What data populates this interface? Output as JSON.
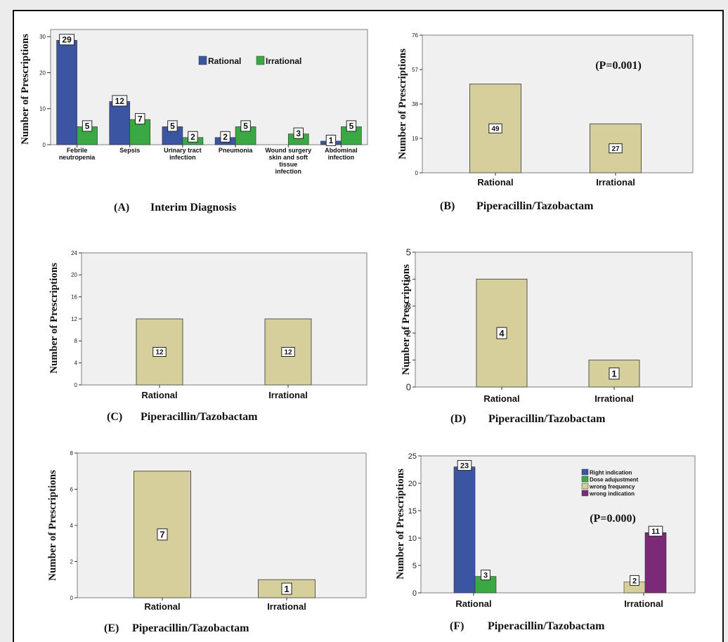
{
  "chart_data": [
    {
      "panel": "A",
      "type": "bar",
      "caption_letter": "(A)",
      "caption_text": "Interim Diagnosis",
      "ylabel": "Number of Prescriptions",
      "xlabel": "",
      "ylim": [
        0,
        32
      ],
      "yticks": [
        "0",
        "10",
        "20",
        "30"
      ],
      "categories": [
        "Febrile neutropenia",
        "Sepsis",
        "Urinary tract infection",
        "Pneumonia",
        "Wound surgery skin and soft tissue infection",
        "Abdominal infection"
      ],
      "series": [
        {
          "name": "Rational",
          "color": "#3b55a3",
          "values": [
            29,
            12,
            5,
            2,
            0,
            1
          ]
        },
        {
          "name": "Irrational",
          "color": "#3aa843",
          "values": [
            5,
            7,
            2,
            5,
            3,
            5
          ]
        }
      ],
      "legend": "top-right",
      "annotation": ""
    },
    {
      "panel": "B",
      "type": "bar",
      "caption_letter": "(B)",
      "caption_text": "Piperacillin/Tazobactam",
      "ylabel": "Number of Prescriptions",
      "ylim": [
        0,
        76
      ],
      "yticks": [
        "0",
        "19",
        "38",
        "57",
        "76"
      ],
      "categories": [
        "Rational",
        "Irrational"
      ],
      "values": [
        49,
        27
      ],
      "color": "#d6cf9c",
      "annotation": "(P=0.001)"
    },
    {
      "panel": "C",
      "type": "bar",
      "caption_letter": "(C)",
      "caption_text": "Piperacillin/Tazobactam",
      "ylabel": "Number of Prescriptions",
      "ylim": [
        0,
        24
      ],
      "yticks": [
        "0",
        "4",
        "8",
        "12",
        "16",
        "20",
        "24"
      ],
      "categories": [
        "Rational",
        "Irrational"
      ],
      "values": [
        12,
        12
      ],
      "color": "#d6cf9c",
      "annotation": ""
    },
    {
      "panel": "D",
      "type": "bar",
      "caption_letter": "(D)",
      "caption_text": "Piperacillin/Tazobactam",
      "ylabel": "Number of Prescriptions",
      "ylim": [
        0,
        5
      ],
      "yticks": [
        "0",
        "1",
        "2",
        "3",
        "4",
        "5"
      ],
      "categories": [
        "Rational",
        "Irrational"
      ],
      "values": [
        4,
        1
      ],
      "color": "#d6cf9c",
      "annotation": ""
    },
    {
      "panel": "E",
      "type": "bar",
      "caption_letter": "(E)",
      "caption_text": "Piperacillin/Tazobactam",
      "ylabel": "Number of Prescriptions",
      "ylim": [
        0,
        8
      ],
      "yticks": [
        "0",
        "2",
        "4",
        "6",
        "8"
      ],
      "categories": [
        "Rational",
        "Irrational"
      ],
      "values": [
        7,
        1
      ],
      "color": "#d6cf9c",
      "annotation": ""
    },
    {
      "panel": "F",
      "type": "bar",
      "caption_letter": "(F)",
      "caption_text": "Piperacillin/Tazobactam",
      "ylabel": "Number of Prescriptions",
      "ylim": [
        0,
        25
      ],
      "yticks": [
        "0",
        "5",
        "10",
        "15",
        "20",
        "25"
      ],
      "categories": [
        "Rational",
        "Irrational"
      ],
      "series": [
        {
          "name": "Right indication",
          "color": "#3b55a3",
          "values": [
            23,
            null
          ]
        },
        {
          "name": "Dose adujustment",
          "color": "#3aa843",
          "values": [
            3,
            null
          ]
        },
        {
          "name": "wrong frequency",
          "color": "#d6cf9c",
          "values": [
            null,
            2
          ]
        },
        {
          "name": "wrong indication",
          "color": "#7b2a78",
          "values": [
            null,
            11
          ]
        }
      ],
      "legend": "top-right",
      "annotation": "(P=0.000)"
    }
  ]
}
